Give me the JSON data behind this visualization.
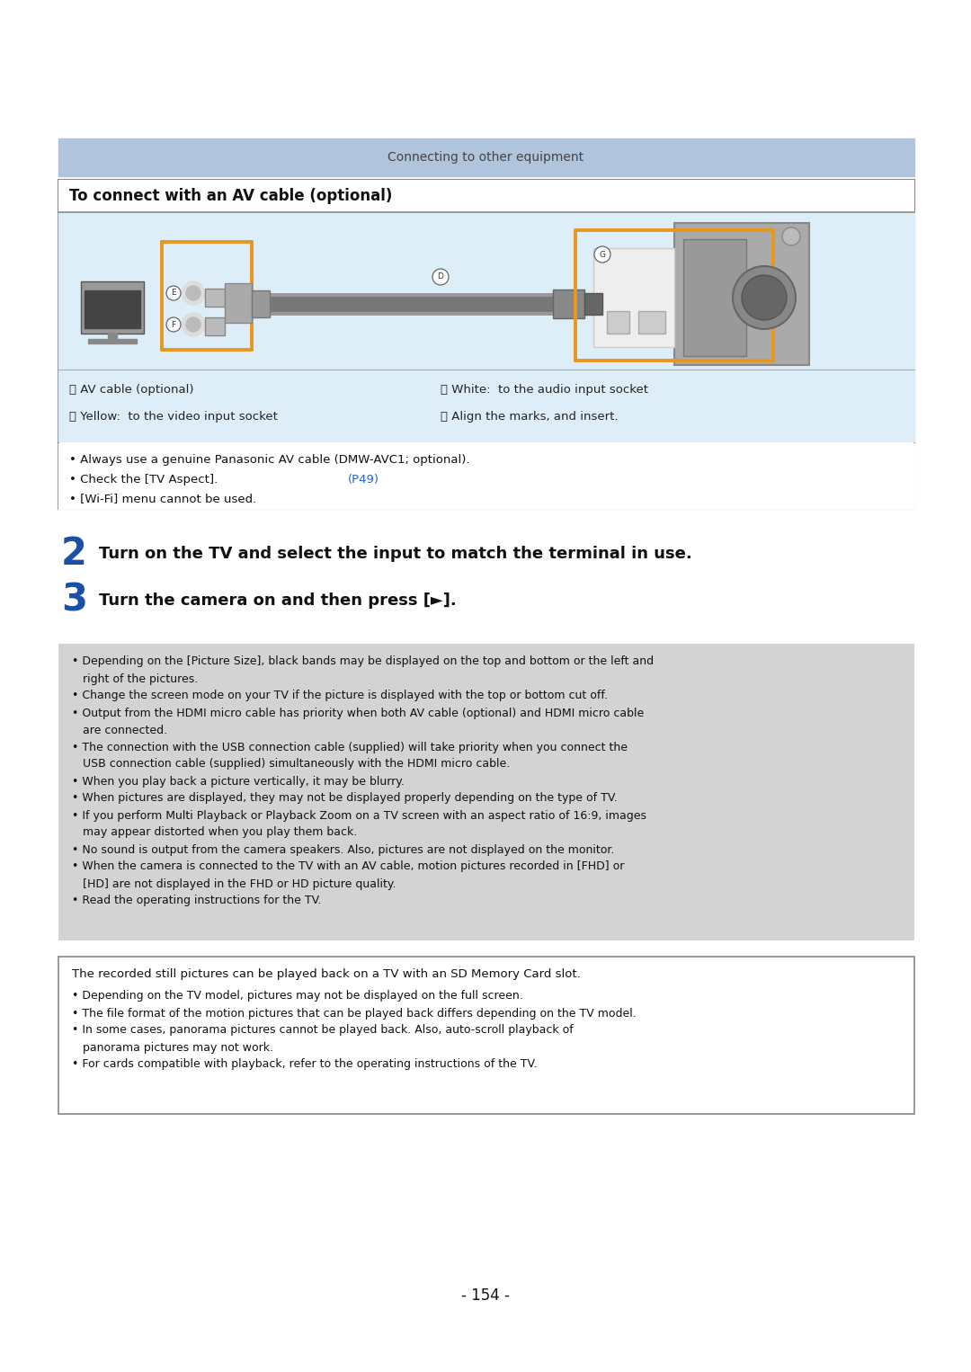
{
  "page_bg": "#ffffff",
  "fig_w": 10.8,
  "fig_h": 15.26,
  "dpi": 100,
  "top_banner_color": "#b0c4de",
  "top_banner_text": "Connecting to other equipment",
  "top_banner_text_color": "#444444",
  "box_title": "To connect with an AV cable (optional)",
  "box_bg": "#ffffff",
  "box_border": "#888888",
  "img_area_bg": "#deeef8",
  "legend_area_bg": "#deeef8",
  "orange": "#e8971e",
  "legend_items_left": [
    [
      "ⓓ AV cable (optional)"
    ],
    [
      "ⓔ Yellow:  to the video input socket"
    ]
  ],
  "legend_items_right": [
    [
      "ⓕ White:  to the audio input socket"
    ],
    [
      "ⓖ Align the marks, and insert."
    ]
  ],
  "bullet1": "• Always use a genuine Panasonic AV cable (DMW-AVC1; optional).",
  "bullet2_pre": "• Check the [TV Aspect]. ",
  "bullet2_link": "(P49)",
  "bullet3": "• [Wi-Fi] menu cannot be used.",
  "step2_num": "2",
  "step2_text": "Turn on the TV and select the input to match the terminal in use.",
  "step3_num": "3",
  "step3_text": "Turn the camera on and then press [►].",
  "step_color": "#1a4faa",
  "gray_bg": "#cccccc",
  "gray_bullets": [
    "• Depending on the [Picture Size], black bands may be displayed on the top and bottom or the left and\n   right of the pictures.",
    "• Change the screen mode on your TV if the picture is displayed with the top or bottom cut off.",
    "• Output from the HDMI micro cable has priority when both AV cable (optional) and HDMI micro cable\n   are connected.",
    "• The connection with the USB connection cable (supplied) will take priority when you connect the\n   USB connection cable (supplied) simultaneously with the HDMI micro cable.",
    "• When you play back a picture vertically, it may be blurry.",
    "• When pictures are displayed, they may not be displayed properly depending on the type of TV.",
    "• If you perform Multi Playback or Playback Zoom on a TV screen with an aspect ratio of 16:9, images\n   may appear distorted when you play them back.",
    "• No sound is output from the camera speakers. Also, pictures are not displayed on the monitor.",
    "• When the camera is connected to the TV with an AV cable, motion pictures recorded in [FHD] or\n   [HD] are not displayed in the FHD or HD picture quality.",
    "• Read the operating instructions for the TV."
  ],
  "white_box_title": "The recorded still pictures can be played back on a TV with an SD Memory Card slot.",
  "white_box_bullets": [
    "• Depending on the TV model, pictures may not be displayed on the full screen.",
    "• The file format of the motion pictures that can be played back differs depending on the TV model.",
    "• In some cases, panorama pictures cannot be played back. Also, auto-scroll playback of\n   panorama pictures may not work.",
    "• For cards compatible with playback, refer to the operating instructions of the TV."
  ],
  "page_number": "- 154 -"
}
